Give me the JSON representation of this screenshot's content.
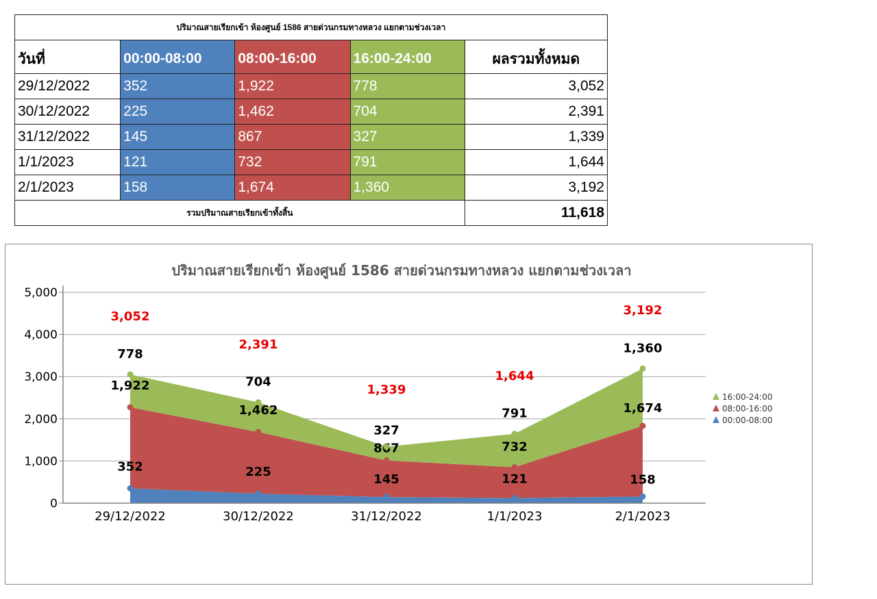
{
  "table": {
    "title": "ปริมาณสายเรียกเข้า ห้องศูนย์ 1586 สายด่วนกรมทางหลวง แยกตามช่วงเวลา",
    "headers": [
      "วันที่",
      "00:00-08:00",
      "08:00-16:00",
      "16:00-24:00",
      "ผลรวมทั้งหมด"
    ],
    "rows": [
      {
        "date": "29/12/2022",
        "s1": "352",
        "s2": "1,922",
        "s3": "778",
        "total": "3,052"
      },
      {
        "date": "30/12/2022",
        "s1": "225",
        "s2": "1,462",
        "s3": "704",
        "total": "2,391"
      },
      {
        "date": "31/12/2022",
        "s1": "145",
        "s2": "867",
        "s3": "327",
        "total": "1,339"
      },
      {
        "date": "1/1/2023",
        "s1": "121",
        "s2": "732",
        "s3": "791",
        "total": "1,644"
      },
      {
        "date": "2/1/2023",
        "s1": "158",
        "s2": "1,674",
        "s3": "1,360",
        "total": "3,192"
      }
    ],
    "footer_label": "รวมปริมาณสายเรียกเข้าทั้งสิ้น",
    "grand_total": "11,618"
  },
  "colors": {
    "night": "#4f81bd",
    "day": "#c0504d",
    "evening": "#9bbb59",
    "total_label": "#e60000"
  },
  "chart_data": {
    "type": "area",
    "stacked": true,
    "title": "ปริมาณสายเรียกเข้า ห้องศูนย์ 1586 สายด่วนกรมทางหลวง แยกตามช่วงเวลา",
    "categories": [
      "29/12/2022",
      "30/12/2022",
      "31/12/2022",
      "1/1/2023",
      "2/1/2023"
    ],
    "series": [
      {
        "name": "00:00-08:00",
        "values": [
          352,
          225,
          145,
          121,
          158
        ],
        "color": "#4f81bd"
      },
      {
        "name": "08:00-16:00",
        "values": [
          1922,
          1462,
          867,
          732,
          1674
        ],
        "color": "#c0504d"
      },
      {
        "name": "16:00-24:00",
        "values": [
          778,
          704,
          327,
          791,
          1360
        ],
        "color": "#9bbb59"
      }
    ],
    "totals": [
      3052,
      2391,
      1339,
      1644,
      3192
    ],
    "ylim": [
      0,
      5000
    ],
    "yticks": [
      0,
      1000,
      2000,
      3000,
      4000,
      5000
    ],
    "ytick_labels": [
      "0",
      "1,000",
      "2,000",
      "3,000",
      "4,000",
      "5,000"
    ],
    "grid": true,
    "legend_position": "right",
    "legend_order": [
      "16:00-24:00",
      "08:00-16:00",
      "00:00-08:00"
    ]
  }
}
